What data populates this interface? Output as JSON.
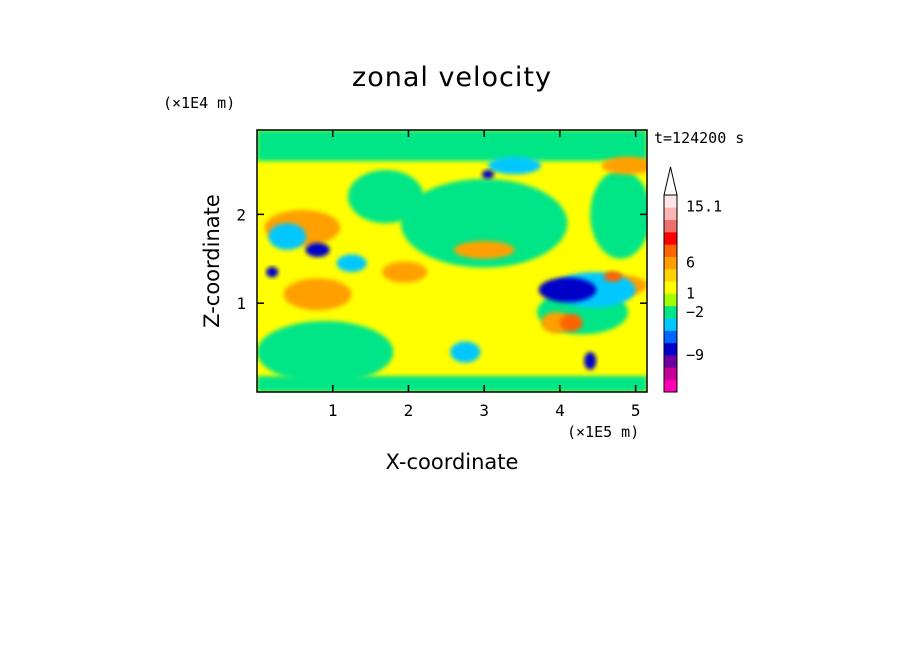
{
  "chart_data": {
    "type": "heatmap",
    "title": "zonal velocity",
    "time_label": "t=124200 s",
    "xlabel": "X-coordinate",
    "ylabel": "Z-coordinate",
    "x_scale_label": "(×1E5 m)",
    "y_scale_label": "(×1E4 m)",
    "xlim": [
      0,
      5.15
    ],
    "ylim": [
      0,
      2.95
    ],
    "x_ticks": [
      "1",
      "2",
      "3",
      "4",
      "5"
    ],
    "x_tick_values": [
      1,
      2,
      3,
      4,
      5
    ],
    "y_ticks": [
      "1",
      "2"
    ],
    "y_tick_values": [
      1,
      2
    ],
    "colorbar": {
      "labels": [
        "15.1",
        "6",
        "1",
        "−2",
        "−9"
      ],
      "label_values": [
        15.1,
        6,
        1,
        -2,
        -9
      ],
      "levels": [
        {
          "color": "#ff00b4"
        },
        {
          "color": "#c80096"
        },
        {
          "color": "#6e00a0"
        },
        {
          "color": "#0000c8"
        },
        {
          "color": "#0064ff"
        },
        {
          "color": "#00c8ff"
        },
        {
          "color": "#00e686"
        },
        {
          "color": "#a0ff00"
        },
        {
          "color": "#ffff00"
        },
        {
          "color": "#ffd200"
        },
        {
          "color": "#ffa000"
        },
        {
          "color": "#ff6400"
        },
        {
          "color": "#ff0000"
        },
        {
          "color": "#f06e6e"
        },
        {
          "color": "#ffb4b4"
        },
        {
          "color": "#ffe6e6"
        }
      ]
    },
    "field": {
      "background": "#ffff00",
      "features": [
        {
          "kind": "band",
          "color": "#00e686",
          "x": [
            0.0,
            5.15
          ],
          "z": [
            2.6,
            2.95
          ]
        },
        {
          "kind": "band",
          "color": "#00e686",
          "x": [
            0.0,
            5.15
          ],
          "z": [
            0.0,
            0.18
          ]
        },
        {
          "kind": "blob",
          "color": "#00e686",
          "x": 0.9,
          "z": 0.45,
          "rx": 0.9,
          "rz": 0.35
        },
        {
          "kind": "blob",
          "color": "#00e686",
          "x": 3.0,
          "z": 1.9,
          "rx": 1.1,
          "rz": 0.5
        },
        {
          "kind": "blob",
          "color": "#00e686",
          "x": 1.7,
          "z": 2.2,
          "rx": 0.5,
          "rz": 0.3
        },
        {
          "kind": "blob",
          "color": "#00e686",
          "x": 4.8,
          "z": 2.0,
          "rx": 0.4,
          "rz": 0.5
        },
        {
          "kind": "blob",
          "color": "#00e686",
          "x": 4.3,
          "z": 0.9,
          "rx": 0.6,
          "rz": 0.25
        },
        {
          "kind": "blob",
          "color": "#ffa000",
          "x": 0.8,
          "z": 1.1,
          "rx": 0.45,
          "rz": 0.18
        },
        {
          "kind": "blob",
          "color": "#ffa000",
          "x": 0.6,
          "z": 1.85,
          "rx": 0.5,
          "rz": 0.2
        },
        {
          "kind": "blob",
          "color": "#ffa000",
          "x": 1.95,
          "z": 1.35,
          "rx": 0.3,
          "rz": 0.12
        },
        {
          "kind": "blob",
          "color": "#ffa000",
          "x": 4.8,
          "z": 1.2,
          "rx": 0.35,
          "rz": 0.12
        },
        {
          "kind": "blob",
          "color": "#ffa000",
          "x": 4.9,
          "z": 2.55,
          "rx": 0.35,
          "rz": 0.1
        },
        {
          "kind": "blob",
          "color": "#ffa000",
          "x": 3.95,
          "z": 0.78,
          "rx": 0.2,
          "rz": 0.12
        },
        {
          "kind": "blob",
          "color": "#ffa000",
          "x": 3.0,
          "z": 1.6,
          "rx": 0.4,
          "rz": 0.1
        },
        {
          "kind": "blob",
          "color": "#00c8ff",
          "x": 4.45,
          "z": 1.15,
          "rx": 0.55,
          "rz": 0.2
        },
        {
          "kind": "blob",
          "color": "#00c8ff",
          "x": 1.25,
          "z": 1.45,
          "rx": 0.2,
          "rz": 0.1
        },
        {
          "kind": "blob",
          "color": "#00c8ff",
          "x": 2.75,
          "z": 0.45,
          "rx": 0.2,
          "rz": 0.12
        },
        {
          "kind": "blob",
          "color": "#00c8ff",
          "x": 3.4,
          "z": 2.55,
          "rx": 0.35,
          "rz": 0.1
        },
        {
          "kind": "blob",
          "color": "#00c8ff",
          "x": 0.4,
          "z": 1.75,
          "rx": 0.25,
          "rz": 0.15
        },
        {
          "kind": "blob",
          "color": "#0000c8",
          "x": 4.1,
          "z": 1.15,
          "rx": 0.38,
          "rz": 0.14
        },
        {
          "kind": "blob",
          "color": "#0000c8",
          "x": 0.8,
          "z": 1.6,
          "rx": 0.16,
          "rz": 0.08
        },
        {
          "kind": "blob",
          "color": "#0000c8",
          "x": 0.2,
          "z": 1.35,
          "rx": 0.08,
          "rz": 0.06
        },
        {
          "kind": "blob",
          "color": "#0000c8",
          "x": 3.05,
          "z": 2.45,
          "rx": 0.08,
          "rz": 0.05
        },
        {
          "kind": "blob",
          "color": "#0000c8",
          "x": 4.4,
          "z": 0.35,
          "rx": 0.08,
          "rz": 0.1
        },
        {
          "kind": "blob",
          "color": "#ff6400",
          "x": 4.15,
          "z": 0.78,
          "rx": 0.15,
          "rz": 0.1
        },
        {
          "kind": "blob",
          "color": "#ff6400",
          "x": 4.7,
          "z": 1.3,
          "rx": 0.12,
          "rz": 0.06
        }
      ]
    }
  }
}
